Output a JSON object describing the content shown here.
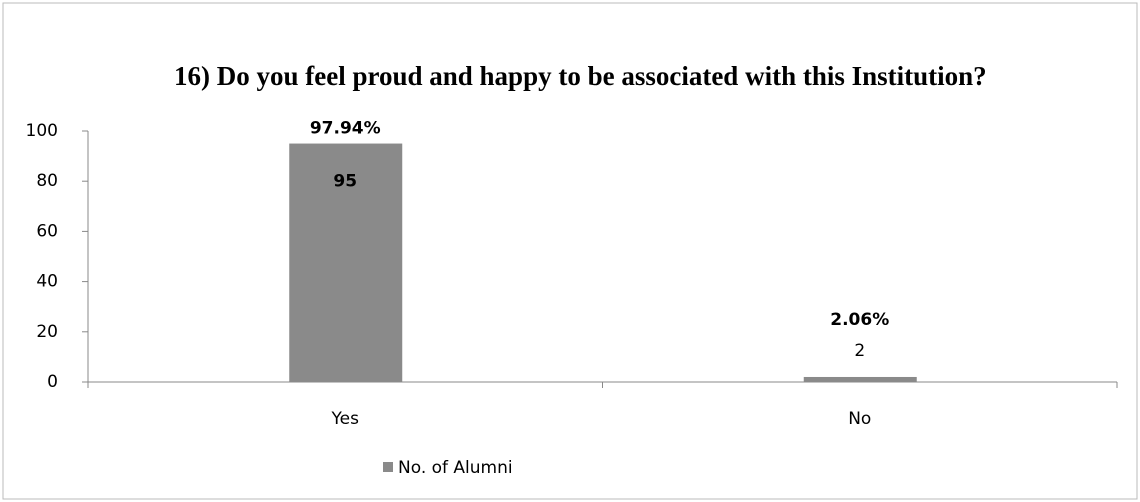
{
  "chart_data": {
    "type": "bar",
    "title": "16) Do you feel proud and happy to be associated with this Institution?",
    "categories": [
      "Yes",
      "No"
    ],
    "series": [
      {
        "name": "No. of Alumni",
        "color": "#8a8a8a",
        "values": [
          95,
          2
        ]
      }
    ],
    "annotations": [
      "97.94%",
      "2.06%"
    ],
    "ylim": [
      0,
      100
    ],
    "yticks": [
      0,
      20,
      40,
      60,
      80,
      100
    ],
    "grid": false,
    "legend": "bottom"
  }
}
